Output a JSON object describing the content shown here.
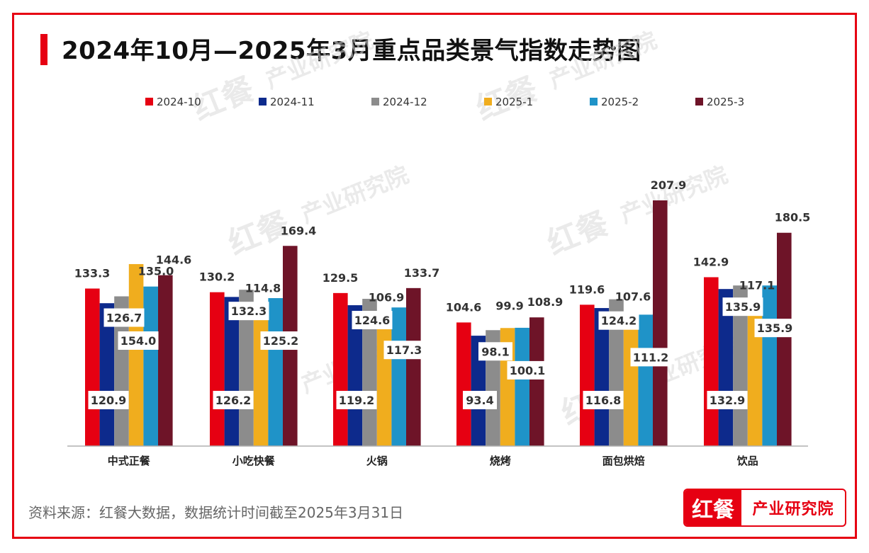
{
  "title": "2024年10月—2025年3月重点品类景气指数走势图",
  "source": "资料来源：红餐大数据，数据统计时间截至2025年3月31日",
  "logo": {
    "mark": "红餐",
    "text": "产业研究院"
  },
  "watermark": {
    "mark": "红餐",
    "text": "产业研究院"
  },
  "colors": {
    "frame": "#e60012",
    "accent": "#e60012"
  },
  "chart_data": {
    "type": "bar",
    "title": "2024年10月—2025年3月重点品类景气指数走势图",
    "legend_position": "top",
    "grid": false,
    "categories": [
      "中式正餐",
      "小吃快餐",
      "火锅",
      "烧烤",
      "面包烘焙",
      "饮品"
    ],
    "series": [
      {
        "name": "2024-10",
        "color": "#e60012",
        "values": [
          133.3,
          130.2,
          129.5,
          104.6,
          119.6,
          142.9
        ]
      },
      {
        "name": "2024-11",
        "color": "#0d2a8c",
        "values": [
          120.9,
          126.2,
          119.2,
          93.4,
          116.8,
          132.9
        ]
      },
      {
        "name": "2024-12",
        "color": "#8c8c8c",
        "values": [
          126.7,
          132.3,
          124.6,
          98.1,
          124.2,
          135.9
        ]
      },
      {
        "name": "2025-1",
        "color": "#f0ad1e",
        "values": [
          154.0,
          114.8,
          106.9,
          99.9,
          107.6,
          117.1
        ]
      },
      {
        "name": "2025-2",
        "color": "#1f93c8",
        "values": [
          135.0,
          125.2,
          117.3,
          100.1,
          111.2,
          135.9
        ]
      },
      {
        "name": "2025-3",
        "color": "#6e1428",
        "values": [
          144.6,
          169.4,
          133.7,
          108.9,
          207.9,
          180.5
        ]
      }
    ]
  }
}
